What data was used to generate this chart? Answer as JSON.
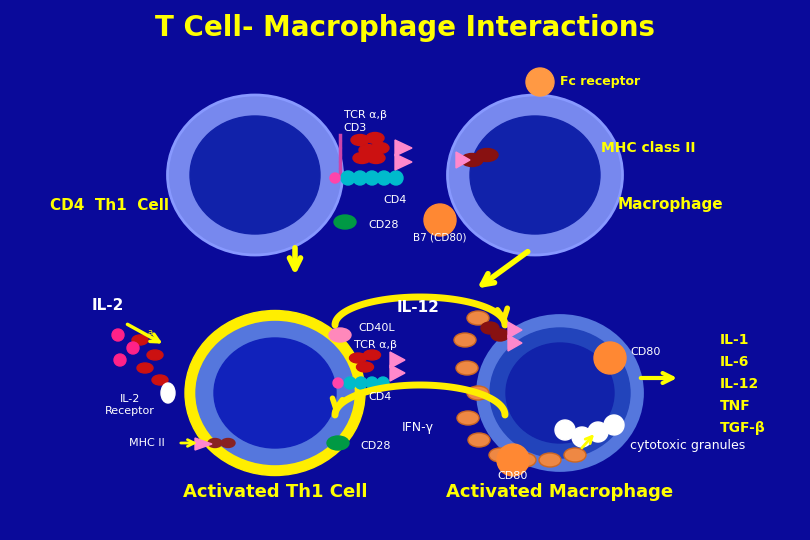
{
  "bg_color": "#0A0A9A",
  "title": "T Cell- Macrophage Interactions",
  "title_color": "#FFFF00",
  "title_fontsize": 20,
  "white_color": "#FFFFFF",
  "yellow_color": "#FFFF00",
  "labels": {
    "fc_receptor": "Fc receptor",
    "tcr_ab": "TCR α,β",
    "cd3": "CD3",
    "mhc_class2": "MHC class II",
    "cd4_th1_cell": "CD4  Th1  Cell",
    "macrophage": "Macrophage",
    "cd4": "CD4",
    "cd28_top": "CD28",
    "b7_cd80": "B7 (CD80)",
    "il2": "IL-2",
    "cd40l": "CD40L",
    "il12": "IL-12",
    "tcr_ab2": "TCR α,β",
    "cd4_2": "CD4",
    "il2_receptor": "IL-2\nReceptor",
    "mhc2": "MHC II",
    "cd28_bot": "CD28",
    "ifn_gamma": "IFN-γ",
    "cd80_top": "CD80",
    "il1": "IL-1",
    "il6": "IL-6",
    "il12_right": "IL-12",
    "tnf": "TNF",
    "tgf_beta": "TGF-β",
    "cytotoxic": "cytotoxic granules",
    "cd80_bot": "CD80",
    "activated_th1": "Activated Th1 Cell",
    "activated_macro": "Activated Macrophage"
  }
}
